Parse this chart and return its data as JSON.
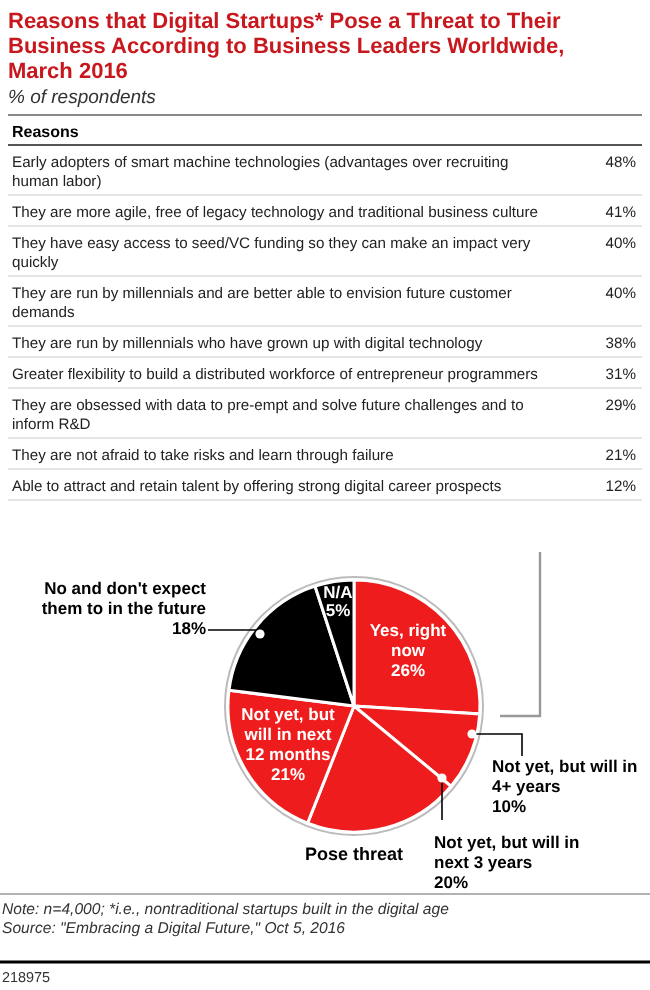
{
  "chart_data": [
    {
      "type": "other",
      "title": "Reasons that Digital Startups* Pose a Threat to Their Business According to Business Leaders Worldwide, March 2016",
      "subtitle": "% of respondents",
      "xlabel": "Reasons",
      "categories": [
        "Early adopters of smart machine technologies (advantages over recruiting human labor)",
        "They are more agile, free of legacy technology and traditional business culture",
        "They have easy access to seed/VC funding so they can make an impact very quickly",
        "They are run by millennials and are better able to envision future customer demands",
        "They are run by millennials who have grown up with digital technology",
        "Greater flexibility to build a distributed workforce of entrepreneur programmers",
        "They are obsessed with data to pre-empt and solve future challenges and to inform R&D",
        "They are not afraid to take risks and learn through failure",
        "Able to attract and retain talent by offering  strong digital career prospects"
      ],
      "values": [
        48,
        41,
        40,
        40,
        38,
        31,
        29,
        21,
        12
      ],
      "value_labels": [
        "48%",
        "41%",
        "40%",
        "40%",
        "38%",
        "31%",
        "29%",
        "21%",
        "12%"
      ]
    },
    {
      "type": "pie",
      "categories": [
        "Yes, right now",
        "Not yet, but will in 4+ years",
        "Not yet, but will in next 3 years",
        "Not yet, but will in next 12 months",
        "No and don't expect them to in the future",
        "N/A"
      ],
      "values": [
        26,
        10,
        20,
        21,
        18,
        5
      ],
      "value_labels": [
        "26%",
        "10%",
        "20%",
        "21%",
        "18%",
        "5%"
      ],
      "colors": [
        "#ee1c1c",
        "#ee1c1c",
        "#ee1c1c",
        "#ee1c1c",
        "#000000",
        "#000000"
      ],
      "annotations": [
        "Pose threat",
        "Note: n=4,000; *i.e., nontraditional startups built in the digital age",
        "Source: \"Embracing a Digital Future,\" Oct 5, 2016",
        "218975"
      ]
    }
  ]
}
